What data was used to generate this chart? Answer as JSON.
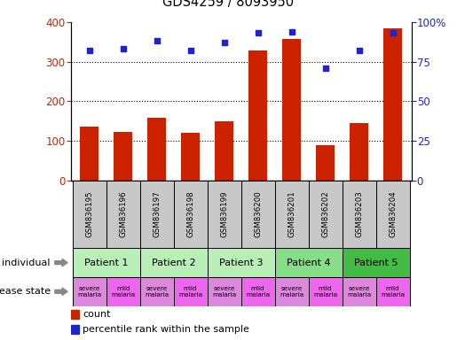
{
  "title": "GDS4259 / 8093950",
  "samples": [
    "GSM836195",
    "GSM836196",
    "GSM836197",
    "GSM836198",
    "GSM836199",
    "GSM836200",
    "GSM836201",
    "GSM836202",
    "GSM836203",
    "GSM836204"
  ],
  "counts": [
    135,
    122,
    158,
    120,
    150,
    328,
    358,
    88,
    145,
    385
  ],
  "percentile_ranks": [
    82,
    83,
    88,
    82,
    87,
    93,
    94,
    71,
    82,
    93
  ],
  "patients": [
    {
      "label": "Patient 1",
      "cols": [
        0,
        1
      ],
      "color": "#b8f0b8"
    },
    {
      "label": "Patient 2",
      "cols": [
        2,
        3
      ],
      "color": "#b8f0b8"
    },
    {
      "label": "Patient 3",
      "cols": [
        4,
        5
      ],
      "color": "#b8f0b8"
    },
    {
      "label": "Patient 4",
      "cols": [
        6,
        7
      ],
      "color": "#88dd88"
    },
    {
      "label": "Patient 5",
      "cols": [
        8,
        9
      ],
      "color": "#44bb44"
    }
  ],
  "disease_states": [
    {
      "label": "severe\nmalaria",
      "color": "#dd88dd"
    },
    {
      "label": "mild\nmalaria",
      "color": "#ee66ee"
    },
    {
      "label": "severe\nmalaria",
      "color": "#dd88dd"
    },
    {
      "label": "mild\nmalaria",
      "color": "#ee66ee"
    },
    {
      "label": "severe\nmalaria",
      "color": "#dd88dd"
    },
    {
      "label": "mild\nmalaria",
      "color": "#ee66ee"
    },
    {
      "label": "severe\nmalaria",
      "color": "#dd88dd"
    },
    {
      "label": "mild\nmalaria",
      "color": "#ee66ee"
    },
    {
      "label": "severe\nmalaria",
      "color": "#dd88dd"
    },
    {
      "label": "mild\nmalaria",
      "color": "#ee66ee"
    }
  ],
  "bar_color": "#cc2200",
  "dot_color": "#2222cc",
  "left_ylim": [
    0,
    400
  ],
  "right_ylim": [
    0,
    100
  ],
  "left_yticks": [
    0,
    100,
    200,
    300,
    400
  ],
  "right_yticks": [
    0,
    25,
    50,
    75,
    100
  ],
  "right_yticklabels": [
    "0",
    "25",
    "50",
    "75",
    "100%"
  ],
  "dotted_lines": [
    100,
    200,
    300
  ],
  "sample_row_bg": "#c8c8c8",
  "individual_label": "individual",
  "disease_label": "disease state"
}
